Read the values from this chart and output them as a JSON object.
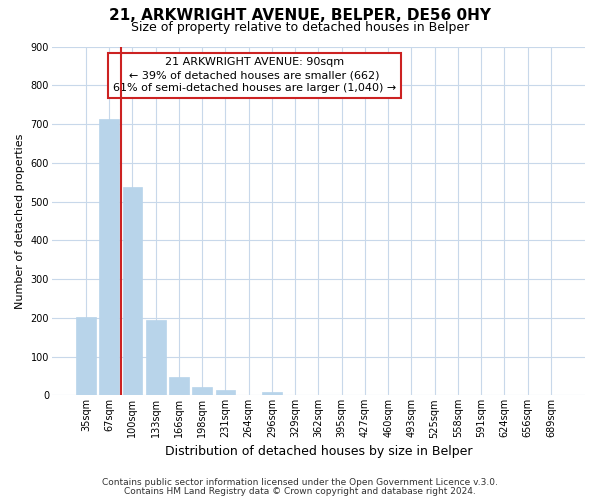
{
  "title": "21, ARKWRIGHT AVENUE, BELPER, DE56 0HY",
  "subtitle": "Size of property relative to detached houses in Belper",
  "xlabel": "Distribution of detached houses by size in Belper",
  "ylabel": "Number of detached properties",
  "bar_labels": [
    "35sqm",
    "67sqm",
    "100sqm",
    "133sqm",
    "166sqm",
    "198sqm",
    "231sqm",
    "264sqm",
    "296sqm",
    "329sqm",
    "362sqm",
    "395sqm",
    "427sqm",
    "460sqm",
    "493sqm",
    "525sqm",
    "558sqm",
    "591sqm",
    "624sqm",
    "656sqm",
    "689sqm"
  ],
  "bar_values": [
    202,
    714,
    537,
    195,
    46,
    22,
    14,
    0,
    8,
    0,
    0,
    0,
    0,
    0,
    0,
    0,
    0,
    0,
    0,
    0,
    0
  ],
  "bar_color": "#b8d4ea",
  "red_line_x": 1.5,
  "annotation_lines": [
    "21 ARKWRIGHT AVENUE: 90sqm",
    "← 39% of detached houses are smaller (662)",
    "61% of semi-detached houses are larger (1,040) →"
  ],
  "ylim": [
    0,
    900
  ],
  "yticks": [
    0,
    100,
    200,
    300,
    400,
    500,
    600,
    700,
    800,
    900
  ],
  "footer_line1": "Contains HM Land Registry data © Crown copyright and database right 2024.",
  "footer_line2": "Contains public sector information licensed under the Open Government Licence v.3.0.",
  "background_color": "#ffffff",
  "grid_color": "#c8d8ea",
  "annotation_box_color": "#ffffff",
  "annotation_box_edge": "#cc2222",
  "red_line_color": "#cc2222",
  "title_fontsize": 11,
  "subtitle_fontsize": 9,
  "ylabel_fontsize": 8,
  "xlabel_fontsize": 9,
  "tick_fontsize": 7,
  "annotation_fontsize": 8,
  "footer_fontsize": 6.5
}
